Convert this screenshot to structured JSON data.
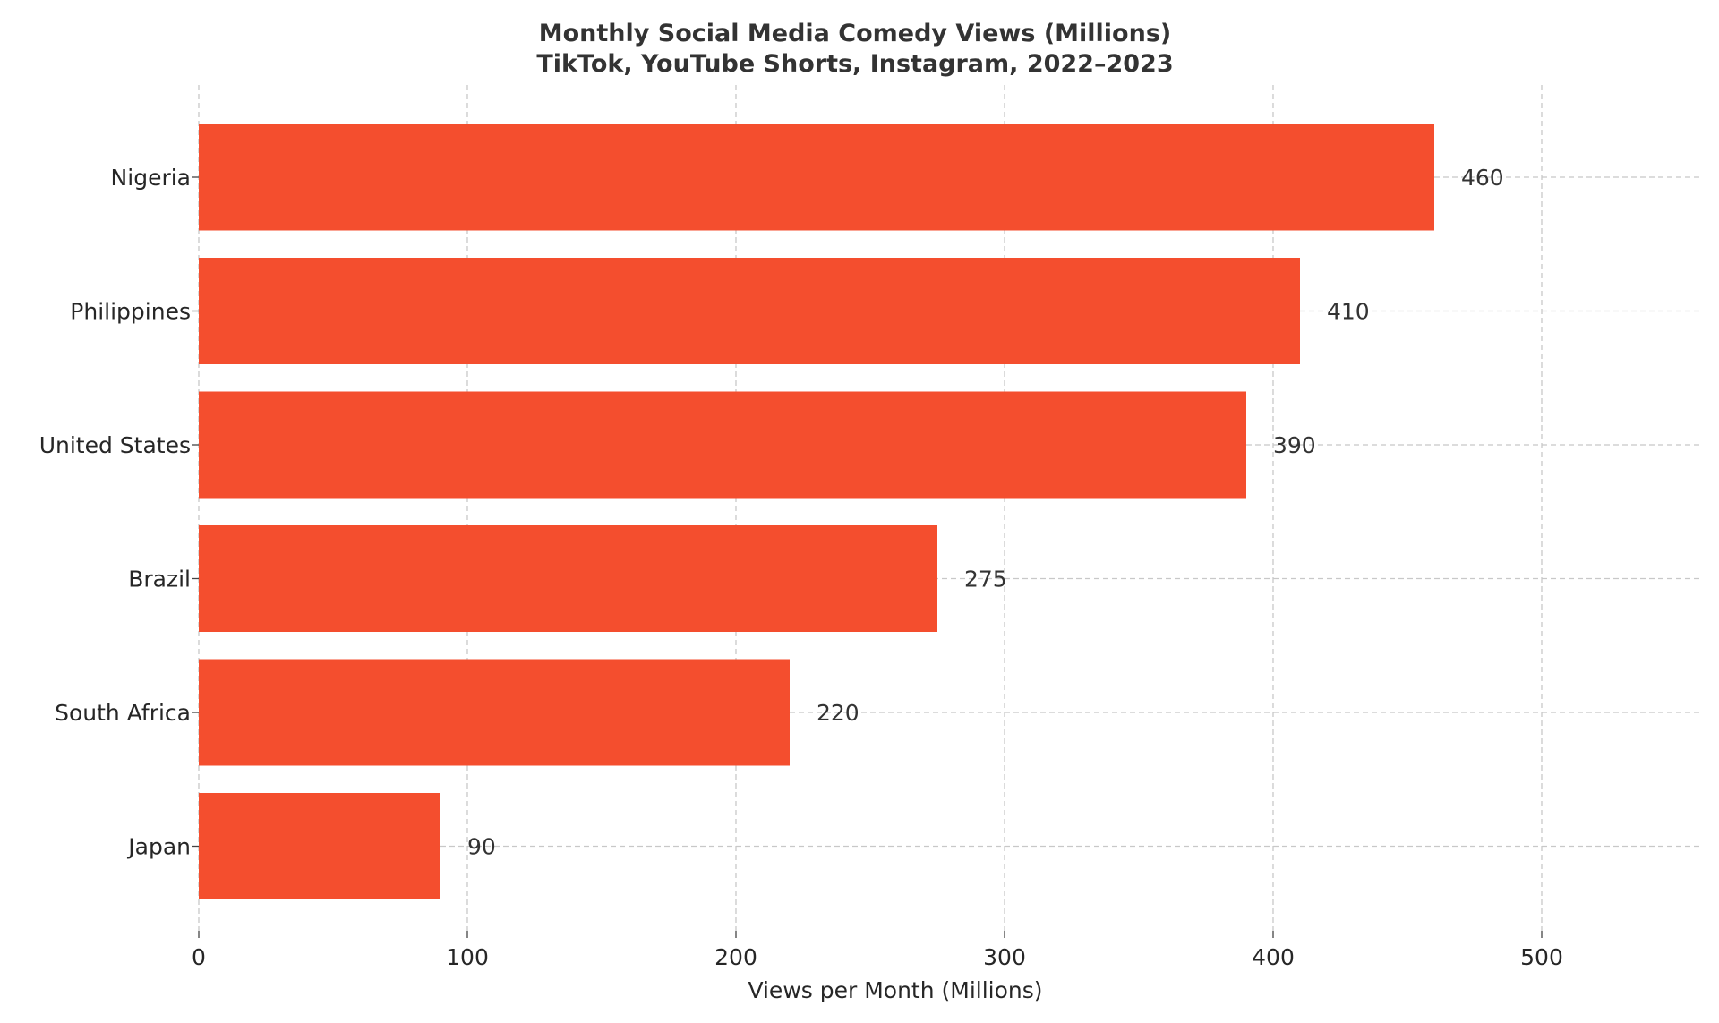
{
  "chart_data": {
    "type": "bar",
    "orientation": "horizontal",
    "title": "Monthly Social Media Comedy Views (Millions)",
    "subtitle": "TikTok, YouTube Shorts, Instagram, 2022–2023",
    "xlabel": "Views per Month (Millions)",
    "ylabel": "",
    "categories": [
      "Nigeria",
      "Philippines",
      "United States",
      "Brazil",
      "South Africa",
      "Japan"
    ],
    "values": [
      460,
      410,
      390,
      275,
      220,
      90
    ],
    "value_labels": [
      "460",
      "410",
      "390",
      "275",
      "220",
      "90"
    ],
    "xlim": [
      0,
      560
    ],
    "xticks": [
      0,
      100,
      200,
      300,
      400,
      500
    ],
    "xtick_labels": [
      "0",
      "100",
      "200",
      "300",
      "400",
      "500"
    ],
    "bar_color": "#f44e2e",
    "grid": true,
    "legend": "none"
  }
}
